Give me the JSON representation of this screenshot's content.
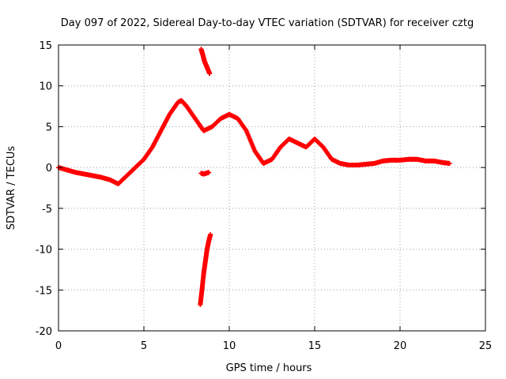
{
  "chart_data": {
    "type": "scatter",
    "title": "Day 097 of 2022, Sidereal Day-to-day VTEC variation (SDTVAR) for receiver cztg",
    "xlabel": "GPS time / hours",
    "ylabel": "SDTVAR / TECUs",
    "xlim": [
      0,
      25
    ],
    "ylim": [
      -20,
      15
    ],
    "xticks": [
      0,
      5,
      10,
      15,
      20,
      25
    ],
    "yticks": [
      -20,
      -15,
      -10,
      -5,
      0,
      5,
      10,
      15
    ],
    "xtick_labels": [
      "0",
      "5",
      "10",
      "15",
      "20",
      "25"
    ],
    "ytick_labels": [
      "-20",
      "-15",
      "-10",
      "-5",
      "0",
      "5",
      "10",
      "15"
    ],
    "grid": true,
    "marker": "plus",
    "color": "#ff0000",
    "series": [
      {
        "name": "main-band",
        "x": [
          0.0,
          0.5,
          1.0,
          1.5,
          2.0,
          2.5,
          3.0,
          3.5,
          4.0,
          4.5,
          5.0,
          5.5,
          6.0,
          6.5,
          7.0,
          7.2,
          7.5,
          8.0,
          8.5,
          9.0,
          9.5,
          10.0,
          10.5,
          11.0,
          11.5,
          12.0,
          12.5,
          13.0,
          13.5,
          14.0,
          14.5,
          15.0,
          15.5,
          16.0,
          16.5,
          17.0,
          17.5,
          18.0,
          18.5,
          19.0,
          19.5,
          20.0,
          20.5,
          21.0,
          21.5,
          22.0,
          22.5,
          22.9
        ],
        "y": [
          0.0,
          -0.3,
          -0.6,
          -0.8,
          -1.0,
          -1.2,
          -1.5,
          -2.0,
          -1.0,
          0.0,
          1.0,
          2.5,
          4.5,
          6.5,
          8.0,
          8.2,
          7.5,
          6.0,
          4.5,
          5.0,
          6.0,
          6.5,
          6.0,
          4.5,
          2.0,
          0.5,
          1.0,
          2.5,
          3.5,
          3.0,
          2.5,
          3.5,
          2.5,
          1.0,
          0.5,
          0.3,
          0.3,
          0.4,
          0.5,
          0.8,
          0.9,
          0.9,
          1.0,
          1.0,
          0.8,
          0.8,
          0.6,
          0.5
        ]
      },
      {
        "name": "steep-descent-arc",
        "x": [
          8.35,
          8.45,
          8.55,
          8.65,
          8.75,
          8.85
        ],
        "y": [
          14.5,
          13.8,
          13.0,
          12.5,
          12.0,
          11.5
        ]
      },
      {
        "name": "steep-ascent-arc",
        "x": [
          8.3,
          8.4,
          8.5,
          8.6,
          8.7,
          8.8,
          8.9
        ],
        "y": [
          -16.8,
          -15.0,
          -13.0,
          -11.5,
          -10.0,
          -9.0,
          -8.2
        ]
      },
      {
        "name": "isolated-segment",
        "x": [
          8.35,
          8.5,
          8.65,
          8.8
        ],
        "y": [
          -0.7,
          -0.8,
          -0.7,
          -0.6
        ]
      }
    ]
  }
}
